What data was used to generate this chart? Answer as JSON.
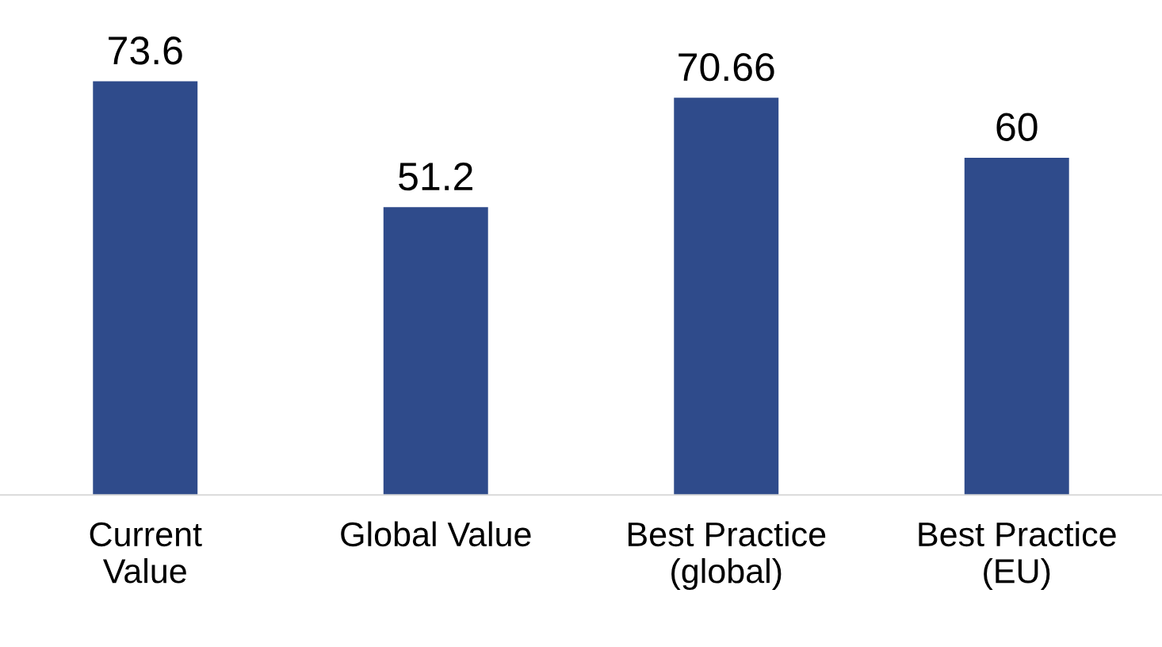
{
  "chart_data": {
    "type": "bar",
    "categories": [
      "Current\nValue",
      "Global Value",
      "Best Practice\n(global)",
      "Best Practice\n(EU)"
    ],
    "values": [
      73.6,
      51.2,
      70.66,
      60
    ],
    "color": "#2f4b8b",
    "data_labels": true,
    "tick_labels": "x",
    "grid": false,
    "legend": false
  }
}
